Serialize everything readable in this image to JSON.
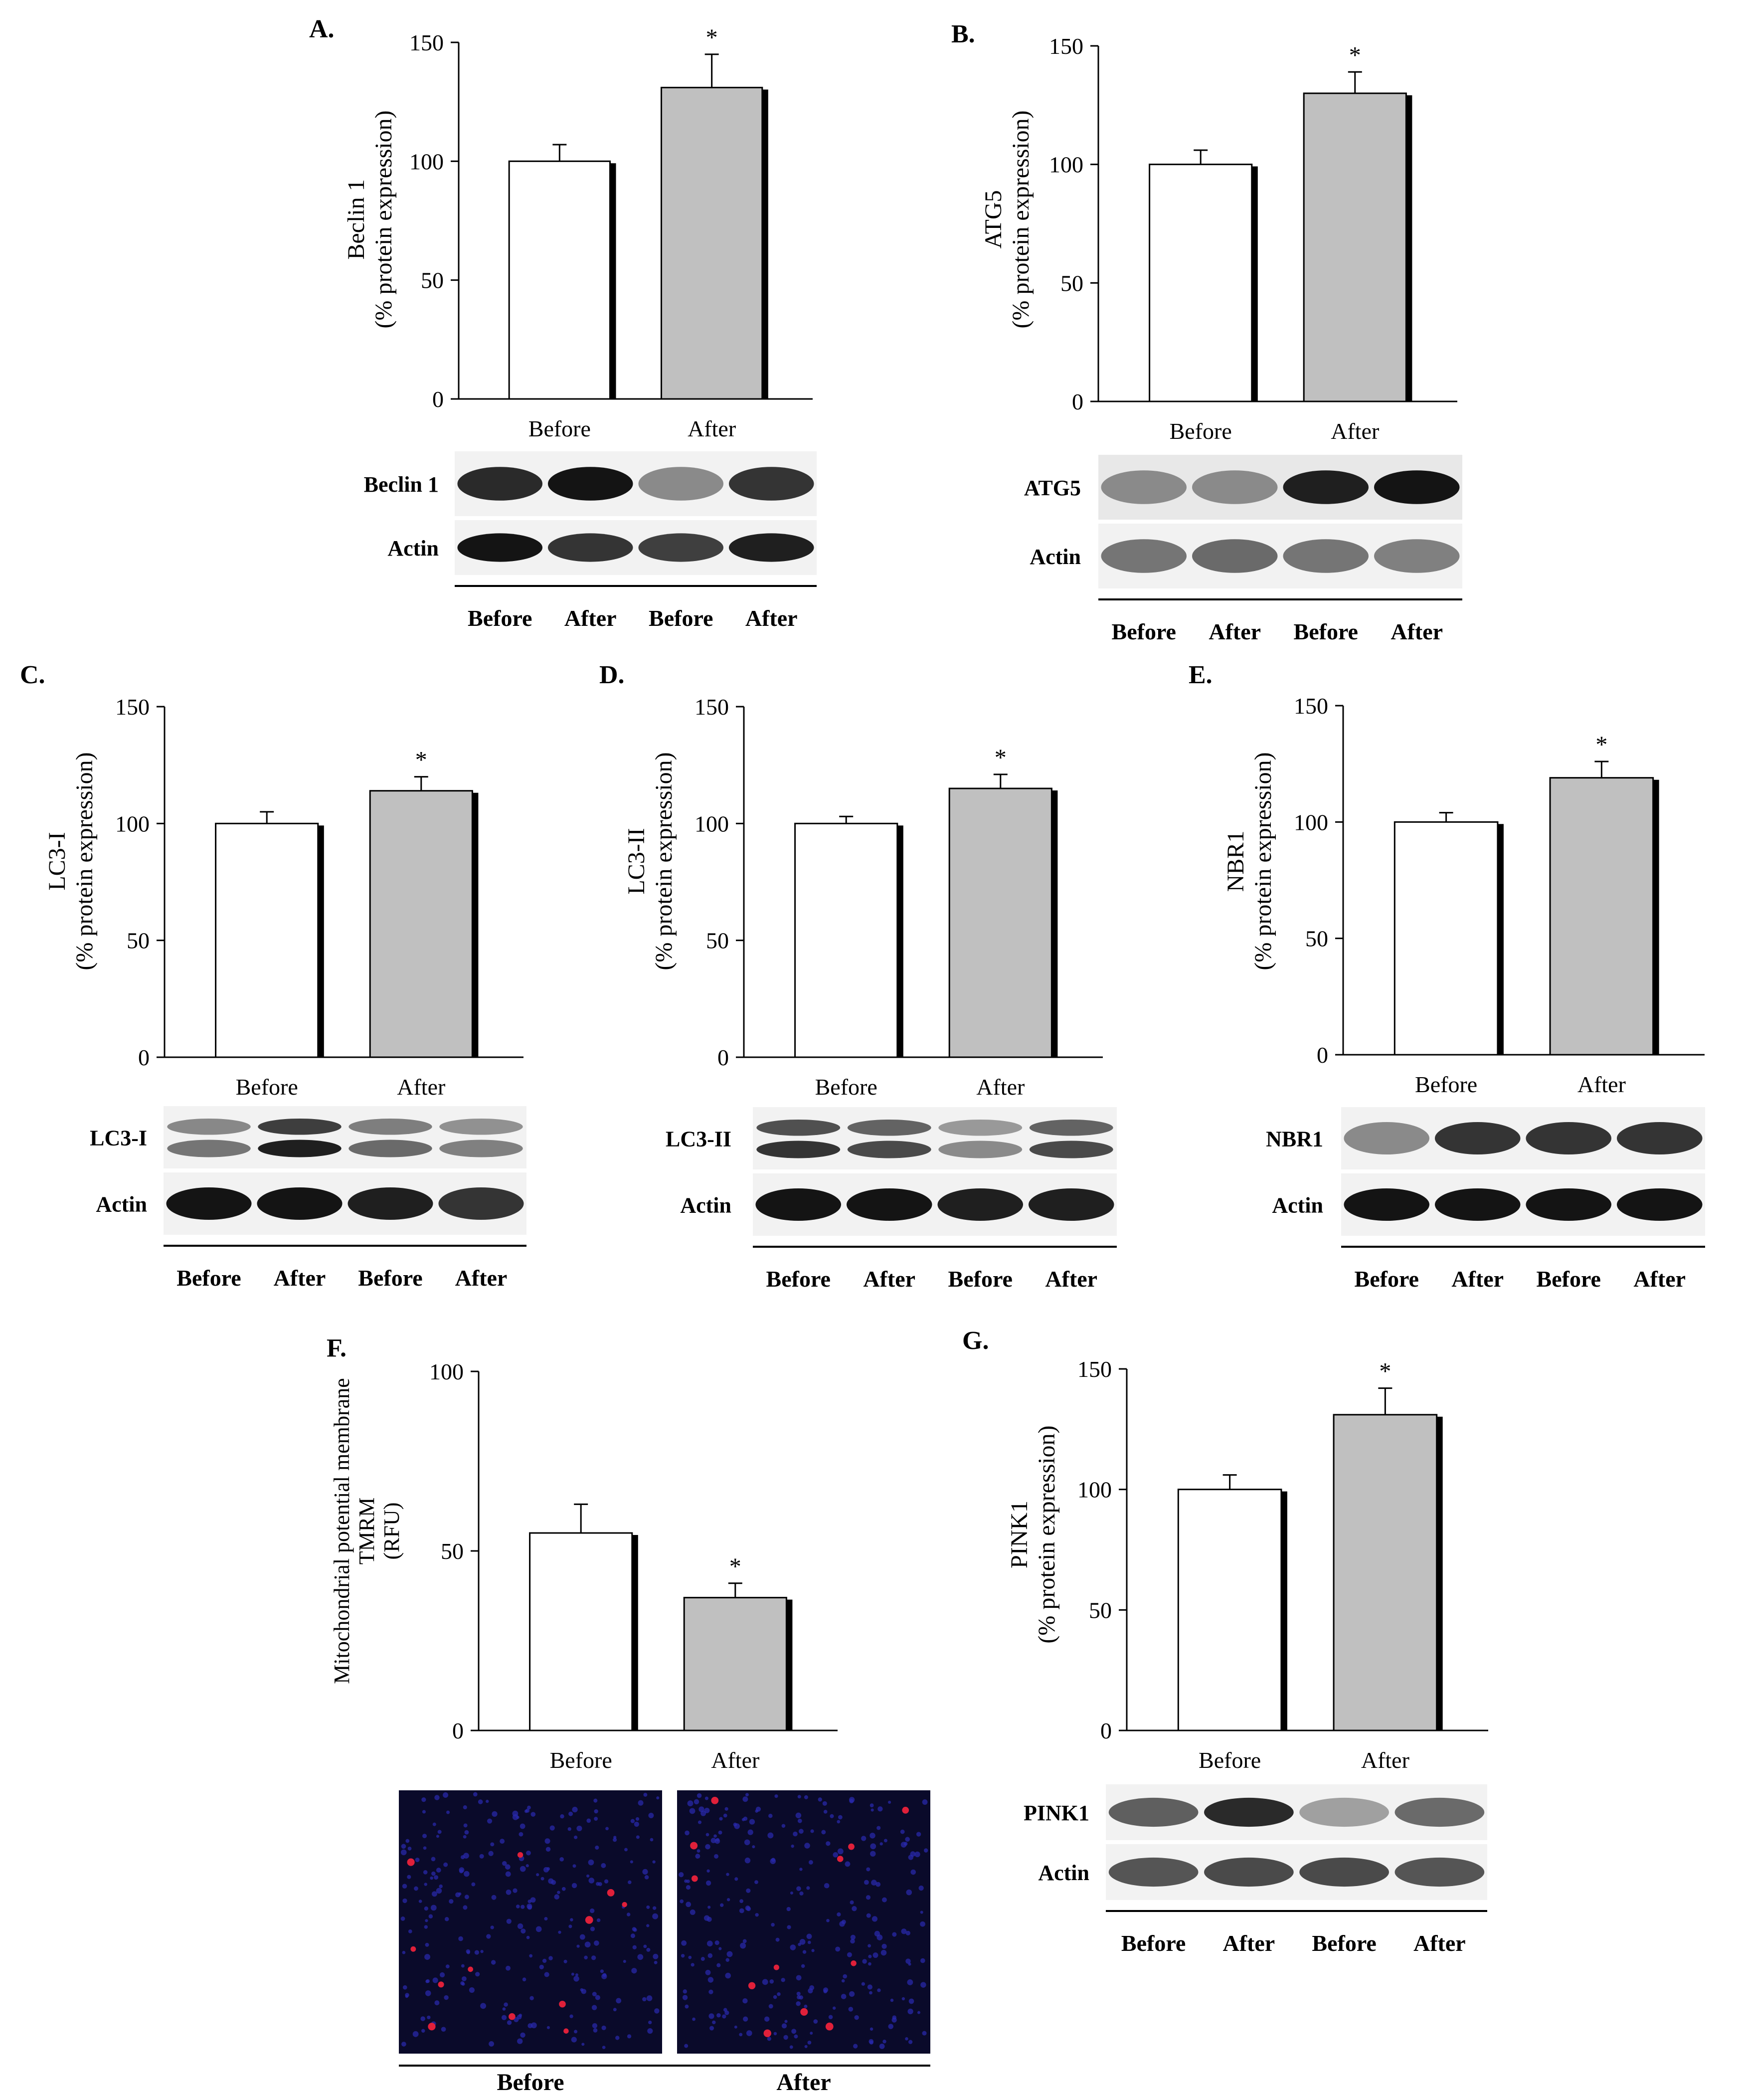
{
  "panels": [
    {
      "id": "A",
      "label": "A.",
      "ylabel": [
        "Beclin 1",
        "(% protein expression)"
      ],
      "blot_labels": [
        "Beclin 1",
        "Actin"
      ],
      "lane_labels": [
        "Before",
        "After",
        "Before",
        "After"
      ]
    },
    {
      "id": "B",
      "label": "B.",
      "ylabel": [
        "ATG5",
        "(% protein expression)"
      ],
      "blot_labels": [
        "ATG5",
        "Actin"
      ],
      "lane_labels": [
        "Before",
        "After",
        "Before",
        "After"
      ]
    },
    {
      "id": "C",
      "label": "C.",
      "ylabel": [
        "LC3-I",
        "(% protein expression)"
      ],
      "blot_labels": [
        "LC3-I",
        "Actin"
      ],
      "lane_labels": [
        "Before",
        "After",
        "Before",
        "After"
      ]
    },
    {
      "id": "D",
      "label": "D.",
      "ylabel": [
        "LC3-II",
        "(% protein expression)"
      ],
      "blot_labels": [
        "LC3-II",
        "Actin"
      ],
      "lane_labels": [
        "Before",
        "After",
        "Before",
        "After"
      ]
    },
    {
      "id": "E",
      "label": "E.",
      "ylabel": [
        "NBR1",
        "(% protein expression)"
      ],
      "blot_labels": [
        "NBR1",
        "Actin"
      ],
      "lane_labels": [
        "Before",
        "After",
        "Before",
        "After"
      ]
    },
    {
      "id": "F",
      "label": "F.",
      "ylabel": [
        "Mitochondrial potential membrane",
        "TMRM",
        "(RFU)"
      ],
      "image_labels": [
        "Before",
        "After"
      ]
    },
    {
      "id": "G",
      "label": "G.",
      "ylabel": [
        "PINK1",
        "(% protein expression)"
      ],
      "blot_labels": [
        "PINK1",
        "Actin"
      ],
      "lane_labels": [
        "Before",
        "After",
        "Before",
        "After"
      ]
    }
  ],
  "chart_data": [
    {
      "panel": "A",
      "type": "bar",
      "categories": [
        "Before",
        "After"
      ],
      "values": [
        100,
        131
      ],
      "errors": [
        7,
        14
      ],
      "significance": [
        "",
        "*"
      ],
      "ylim": [
        0,
        150
      ],
      "yticks": [
        0,
        50,
        100,
        150
      ],
      "colors": [
        "#ffffff",
        "#c0c0c0"
      ]
    },
    {
      "panel": "B",
      "type": "bar",
      "categories": [
        "Before",
        "After"
      ],
      "values": [
        100,
        130
      ],
      "errors": [
        6,
        9
      ],
      "significance": [
        "",
        "*"
      ],
      "ylim": [
        0,
        150
      ],
      "yticks": [
        0,
        50,
        100,
        150
      ],
      "colors": [
        "#ffffff",
        "#c0c0c0"
      ]
    },
    {
      "panel": "C",
      "type": "bar",
      "categories": [
        "Before",
        "After"
      ],
      "values": [
        100,
        114
      ],
      "errors": [
        5,
        6
      ],
      "significance": [
        "",
        "*"
      ],
      "ylim": [
        0,
        150
      ],
      "yticks": [
        0,
        50,
        100,
        150
      ],
      "colors": [
        "#ffffff",
        "#c0c0c0"
      ]
    },
    {
      "panel": "D",
      "type": "bar",
      "categories": [
        "Before",
        "After"
      ],
      "values": [
        100,
        115
      ],
      "errors": [
        3,
        6
      ],
      "significance": [
        "",
        "*"
      ],
      "ylim": [
        0,
        150
      ],
      "yticks": [
        0,
        50,
        100,
        150
      ],
      "colors": [
        "#ffffff",
        "#c0c0c0"
      ]
    },
    {
      "panel": "E",
      "type": "bar",
      "categories": [
        "Before",
        "After"
      ],
      "values": [
        100,
        119
      ],
      "errors": [
        4,
        7
      ],
      "significance": [
        "",
        "*"
      ],
      "ylim": [
        0,
        150
      ],
      "yticks": [
        0,
        50,
        100,
        150
      ],
      "colors": [
        "#ffffff",
        "#c0c0c0"
      ]
    },
    {
      "panel": "F",
      "type": "bar",
      "categories": [
        "Before",
        "After"
      ],
      "values": [
        55,
        37
      ],
      "errors": [
        8,
        4
      ],
      "significance": [
        "",
        "*"
      ],
      "ylim": [
        0,
        100
      ],
      "yticks": [
        0,
        50,
        100
      ],
      "colors": [
        "#ffffff",
        "#c0c0c0"
      ]
    },
    {
      "panel": "G",
      "type": "bar",
      "categories": [
        "Before",
        "After"
      ],
      "values": [
        100,
        131
      ],
      "errors": [
        6,
        11
      ],
      "significance": [
        "",
        "*"
      ],
      "ylim": [
        0,
        150
      ],
      "yticks": [
        0,
        50,
        100,
        150
      ],
      "colors": [
        "#ffffff",
        "#c0c0c0"
      ]
    }
  ]
}
